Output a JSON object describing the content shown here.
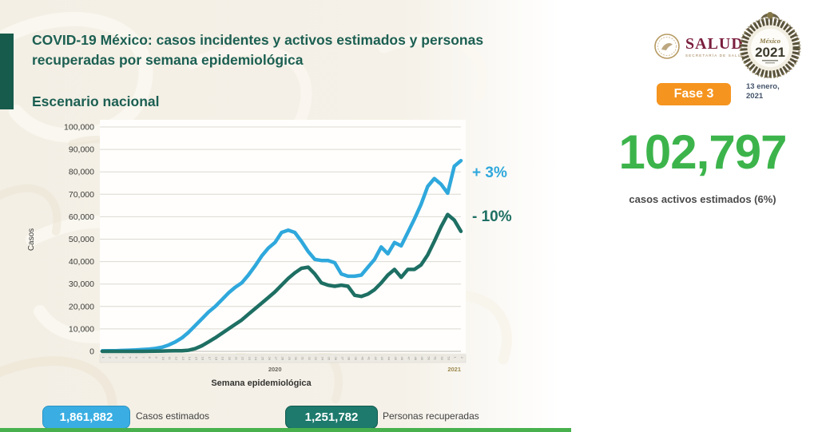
{
  "slide": {
    "title_line1": "COVID-19 México: casos incidentes y activos estimados y personas",
    "title_line2": "recuperadas por semana epidemiológica",
    "subtitle": "Escenario nacional"
  },
  "header": {
    "salud_wordmark": "SALUD",
    "salud_subtext": "SECRETARÍA DE SALUD",
    "badge2021_small": "México",
    "badge2021_year": "2021",
    "fase_label": "Fase 3",
    "date_line1": "13 enero,",
    "date_line2": "2021"
  },
  "stats": {
    "active_value": "102,797",
    "active_label": "casos activos estimados (6%)"
  },
  "annotations": {
    "casos": "+ 3%",
    "recuperadas": "- 10%"
  },
  "footer": {
    "estimated_value": "1,861,882",
    "estimated_label": "Casos estimados",
    "recovered_value": "1,251,782",
    "recovered_label": "Personas recuperadas"
  },
  "colors": {
    "blue": "#2fa8dc",
    "teal": "#1e6f63",
    "green": "#3cb44b",
    "orange": "#f5941f",
    "title_green": "#1c5f52"
  },
  "chart_data": {
    "type": "line",
    "title": "",
    "xlabel": "Semana epidemiológica",
    "ylabel": "Casos",
    "ylim": [
      0,
      100000
    ],
    "ytick_step": 10000,
    "yticks": [
      "0",
      "10,000",
      "20,000",
      "30,000",
      "40,000",
      "50,000",
      "60,000",
      "70,000",
      "80,000",
      "90,000",
      "100,000"
    ],
    "grid": true,
    "legend_position": "none",
    "x_labels": [
      "1",
      "2",
      "3",
      "4",
      "5",
      "6",
      "7",
      "8",
      "9",
      "10",
      "11",
      "12",
      "13",
      "14",
      "15",
      "16",
      "17",
      "18",
      "19",
      "20",
      "21",
      "22",
      "23",
      "24",
      "25",
      "26",
      "27",
      "28",
      "29",
      "30",
      "31",
      "32",
      "33",
      "34",
      "35",
      "36",
      "37",
      "38",
      "39",
      "40",
      "41",
      "42",
      "43",
      "44",
      "45",
      "46",
      "47",
      "48",
      "49",
      "50",
      "51",
      "52",
      "53",
      "1",
      "2"
    ],
    "year_markers": [
      {
        "label": "2020",
        "week": 27,
        "color": "#6a675f"
      },
      {
        "label": "2021",
        "week": 54,
        "color": "#9d8a4e"
      }
    ],
    "series": [
      {
        "name": "Casos estimados",
        "color": "#2fa8dc",
        "values": [
          200,
          250,
          300,
          400,
          500,
          600,
          800,
          1000,
          1300,
          1800,
          2800,
          4200,
          6000,
          8500,
          11500,
          14500,
          17500,
          20000,
          23000,
          26000,
          28500,
          30500,
          34000,
          38000,
          42500,
          46000,
          48500,
          53000,
          54000,
          53000,
          49000,
          44500,
          41000,
          40500,
          40500,
          39500,
          34500,
          33500,
          33500,
          34000,
          37500,
          41000,
          46500,
          43500,
          48500,
          47000,
          53000,
          59000,
          65500,
          73500,
          77000,
          74500,
          70500,
          82500,
          85000
        ]
      },
      {
        "name": "Personas recuperadas",
        "color": "#1e6f63",
        "values": [
          0,
          0,
          0,
          0,
          0,
          0,
          0,
          50,
          100,
          150,
          200,
          250,
          300,
          500,
          1200,
          2500,
          4200,
          6000,
          8000,
          10000,
          12000,
          14000,
          16500,
          19000,
          21500,
          24000,
          26500,
          29500,
          32500,
          35000,
          37000,
          37500,
          34500,
          30500,
          29500,
          29000,
          29500,
          29000,
          25000,
          24500,
          25500,
          27500,
          30500,
          34000,
          36500,
          33000,
          36500,
          36500,
          38500,
          43000,
          49000,
          55500,
          61000,
          58500,
          53500
        ]
      }
    ]
  }
}
